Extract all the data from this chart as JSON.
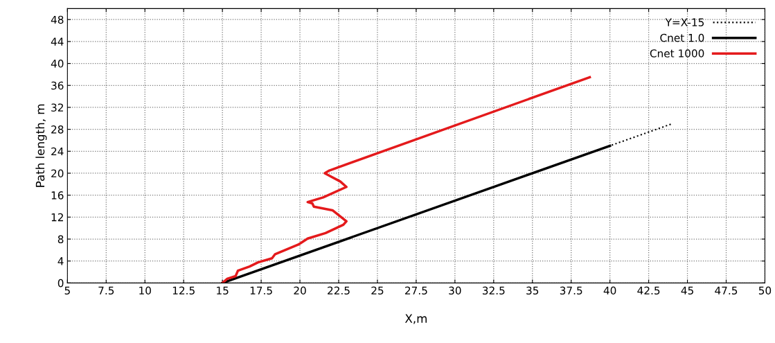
{
  "chart_data": {
    "type": "line",
    "xlabel": "X,m",
    "ylabel": "Path length, m",
    "xlim": [
      5,
      50
    ],
    "xticks": [
      5,
      {
        "value": 7.5,
        "label": "7.5"
      },
      10,
      {
        "value": 12.5,
        "label": "12.5"
      },
      15,
      {
        "value": 17.5,
        "label": "17.5"
      },
      20,
      {
        "value": 22.5,
        "label": "22.5"
      },
      25,
      {
        "value": 27.5,
        "label": "27.5"
      },
      30,
      {
        "value": 32.5,
        "label": "32.5"
      },
      35,
      {
        "value": 37.5,
        "label": "37.5"
      },
      40,
      {
        "value": 42.5,
        "label": "42.5"
      },
      45,
      {
        "value": 47.5,
        "label": "47.5"
      },
      50
    ],
    "ylim": [
      0,
      50
    ],
    "yticks": [
      0,
      4,
      8,
      12,
      16,
      20,
      24,
      28,
      32,
      36,
      40,
      44,
      48
    ],
    "grid": true,
    "legend": "top right",
    "marker": "none",
    "series": [
      {
        "name": "Y=X-15",
        "color": "#000000",
        "line_style": "dotted",
        "x": [
          15,
          44
        ],
        "values": [
          0,
          29
        ]
      },
      {
        "name": "Cnet 1.0",
        "color": "#000000",
        "line_style": "solid",
        "x": [
          15,
          40
        ],
        "values": [
          0,
          25
        ]
      },
      {
        "name": "Cnet 1000",
        "color": "#e41a1c",
        "line_style": "solid",
        "x": [
          15.0,
          15.3,
          15.85,
          16.0,
          16.75,
          17.3,
          18.2,
          18.4,
          19.9,
          20.5,
          21.65,
          22.8,
          23.0,
          22.1,
          20.9,
          20.8,
          20.5,
          21.5,
          23.0,
          22.6,
          21.6,
          21.9,
          38.7
        ],
        "values": [
          0,
          0.75,
          1.25,
          2.25,
          3.0,
          3.75,
          4.5,
          5.25,
          7.0,
          8.1,
          9.1,
          10.6,
          11.25,
          13.25,
          13.9,
          14.5,
          14.75,
          15.6,
          17.5,
          18.5,
          20.0,
          20.5,
          37.5
        ]
      }
    ]
  }
}
